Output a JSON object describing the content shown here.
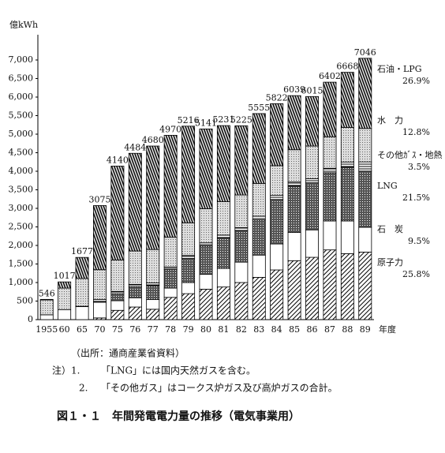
{
  "chart_data": {
    "type": "bar",
    "stacked": true,
    "y_unit": "億kWh",
    "x_unit": "年度",
    "categories": [
      "1955",
      "60",
      "65",
      "70",
      "75",
      "76",
      "77",
      "78",
      "79",
      "80",
      "81",
      "82",
      "83",
      "84",
      "85",
      "86",
      "87",
      "88",
      "89"
    ],
    "totals": [
      546,
      1017,
      1677,
      3075,
      4140,
      4484,
      4680,
      4970,
      5216,
      5141,
      5231,
      5225,
      5555,
      5822,
      6039,
      6015,
      6402,
      6668,
      7046
    ],
    "series": [
      {
        "name": "原子力",
        "share_label": "25.8%",
        "values": [
          0,
          0,
          0,
          46,
          250,
          340,
          280,
          600,
          700,
          820,
          880,
          1000,
          1140,
          1340,
          1590,
          1680,
          1880,
          1780,
          1820
        ]
      },
      {
        "name": "石　炭",
        "share_label": "9.5%",
        "values": [
          130,
          270,
          350,
          420,
          260,
          250,
          260,
          250,
          300,
          400,
          500,
          550,
          600,
          700,
          760,
          740,
          780,
          880,
          670
        ]
      },
      {
        "name": "LNG",
        "share_label": "21.5%",
        "values": [
          0,
          0,
          0,
          30,
          190,
          300,
          380,
          500,
          650,
          770,
          820,
          850,
          950,
          1200,
          1250,
          1270,
          1300,
          1450,
          1515
        ]
      },
      {
        "name": "その他ｶﾞｽ・地熱",
        "share_label": "3.5%",
        "values": [
          0,
          0,
          10,
          50,
          60,
          60,
          70,
          70,
          80,
          80,
          80,
          80,
          100,
          110,
          110,
          110,
          120,
          140,
          247
        ]
      },
      {
        "name": "水　力",
        "share_label": "12.8%",
        "values": [
          400,
          580,
          750,
          800,
          850,
          900,
          900,
          800,
          880,
          920,
          900,
          880,
          880,
          800,
          870,
          880,
          850,
          930,
          902
        ]
      },
      {
        "name": "石油・LPG",
        "share_label": "26.9%",
        "values": [
          16,
          167,
          567,
          1729,
          2530,
          2634,
          2790,
          2750,
          2606,
          2151,
          2051,
          1865,
          1885,
          1672,
          1459,
          1335,
          1472,
          1488,
          1892
        ]
      }
    ],
    "ylim": [
      0,
      7000
    ],
    "yticks": [
      0,
      500,
      {
        "value": 1000,
        "label": "1,000"
      },
      {
        "value": 1500,
        "label": "1,500"
      },
      {
        "value": 2000,
        "label": "2,000"
      },
      {
        "value": 2500,
        "label": "2,500"
      },
      {
        "value": 3000,
        "label": "3,000"
      },
      {
        "value": 3500,
        "label": "3,500"
      },
      {
        "value": 4000,
        "label": "4,000"
      },
      {
        "value": 4500,
        "label": "4,500"
      },
      {
        "value": 5000,
        "label": "5,000"
      },
      {
        "value": 5500,
        "label": "5,500"
      },
      {
        "value": 6000,
        "label": "6,000"
      },
      {
        "value": 6500,
        "label": "6,500"
      },
      {
        "value": 7000,
        "label": "7,000"
      }
    ]
  },
  "notes": {
    "source": "（出所：通商産業省資料）",
    "items": [
      {
        "num": "注）1.",
        "text": "「LNG」には国内天然ガスを含む。"
      },
      {
        "num": "2.",
        "text": "「その他ガス」はコークス炉ガス及び高炉ガスの合計。"
      }
    ]
  },
  "caption": "図１・１　年間発電電力量の推移（電気事業用）"
}
